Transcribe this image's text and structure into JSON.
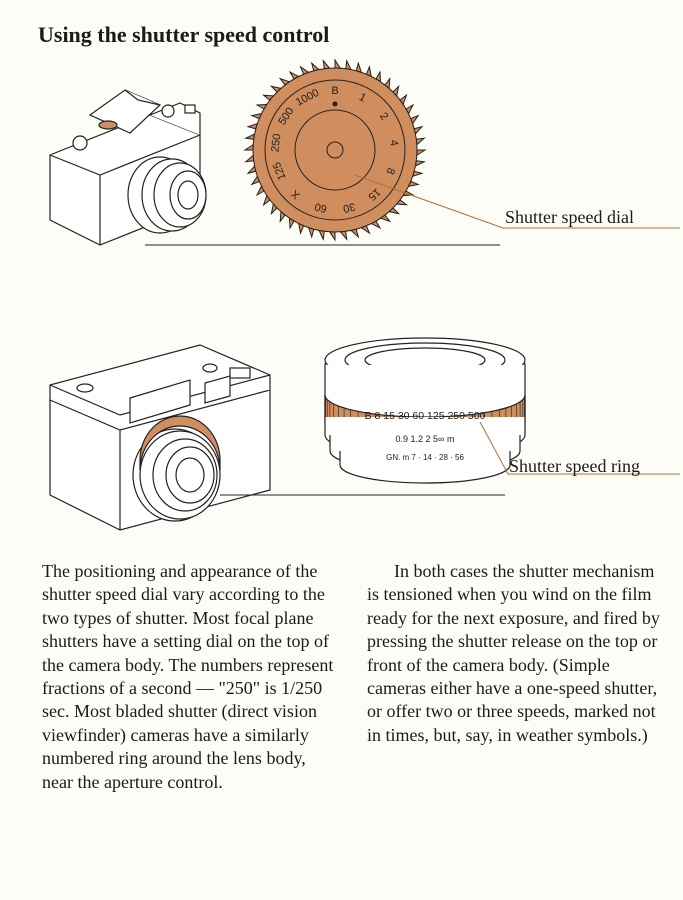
{
  "heading": "Using the shutter speed control",
  "labels": {
    "dial": "Shutter speed dial",
    "ring": "Shutter speed ring"
  },
  "dial": {
    "fill": "#d08e5f",
    "stroke": "#222222",
    "numbers": [
      "B",
      "1",
      "2",
      "4",
      "8",
      "15",
      "30",
      "60",
      "X",
      "125",
      "250",
      "500",
      "1000"
    ],
    "numberColor": "#222222"
  },
  "ring": {
    "orangeFill": "#d08e5f",
    "stroke": "#222222",
    "speeds": "B 8 15 30 60 125 250 500",
    "line2": "0.9 1.2   2   5∞   m",
    "line3": "GN. m   7 · 14 · 28 · 56"
  },
  "camera": {
    "stroke": "#222222",
    "fill": "#ffffff"
  },
  "text": {
    "p1": "The positioning and appearance of the shutter speed dial vary according to the two types of shutter. Most focal plane shutters have a setting dial on the top of the camera body. The numbers represent fractions of a second — \"250\" is 1/250 sec. Most bladed shutter (direct vision viewfinder) cameras have a similarly numbered ring around the lens body, near the aperture control.",
    "p2": "In both cases the shutter mechanism is tensioned when you wind on the film ready for the next exposure, and fired by pressing the shutter release on the top or front of the camera body. (Simple cameras either have a one-speed shutter, or offer two or three speeds, marked not in times, but, say, in weather symbols.)"
  },
  "layout": {
    "headingTop": 22,
    "headingLeft": 38,
    "headingFontSize": 22,
    "label1Top": 215,
    "label1Left": 505,
    "label2Top": 463,
    "label2Left": 509,
    "bodyTop": 560,
    "bodyLeft": 42,
    "bodyWidth": 620,
    "bodyFontSize": 18,
    "columnGap": 30,
    "labelLineColor": "#b76e2e"
  }
}
